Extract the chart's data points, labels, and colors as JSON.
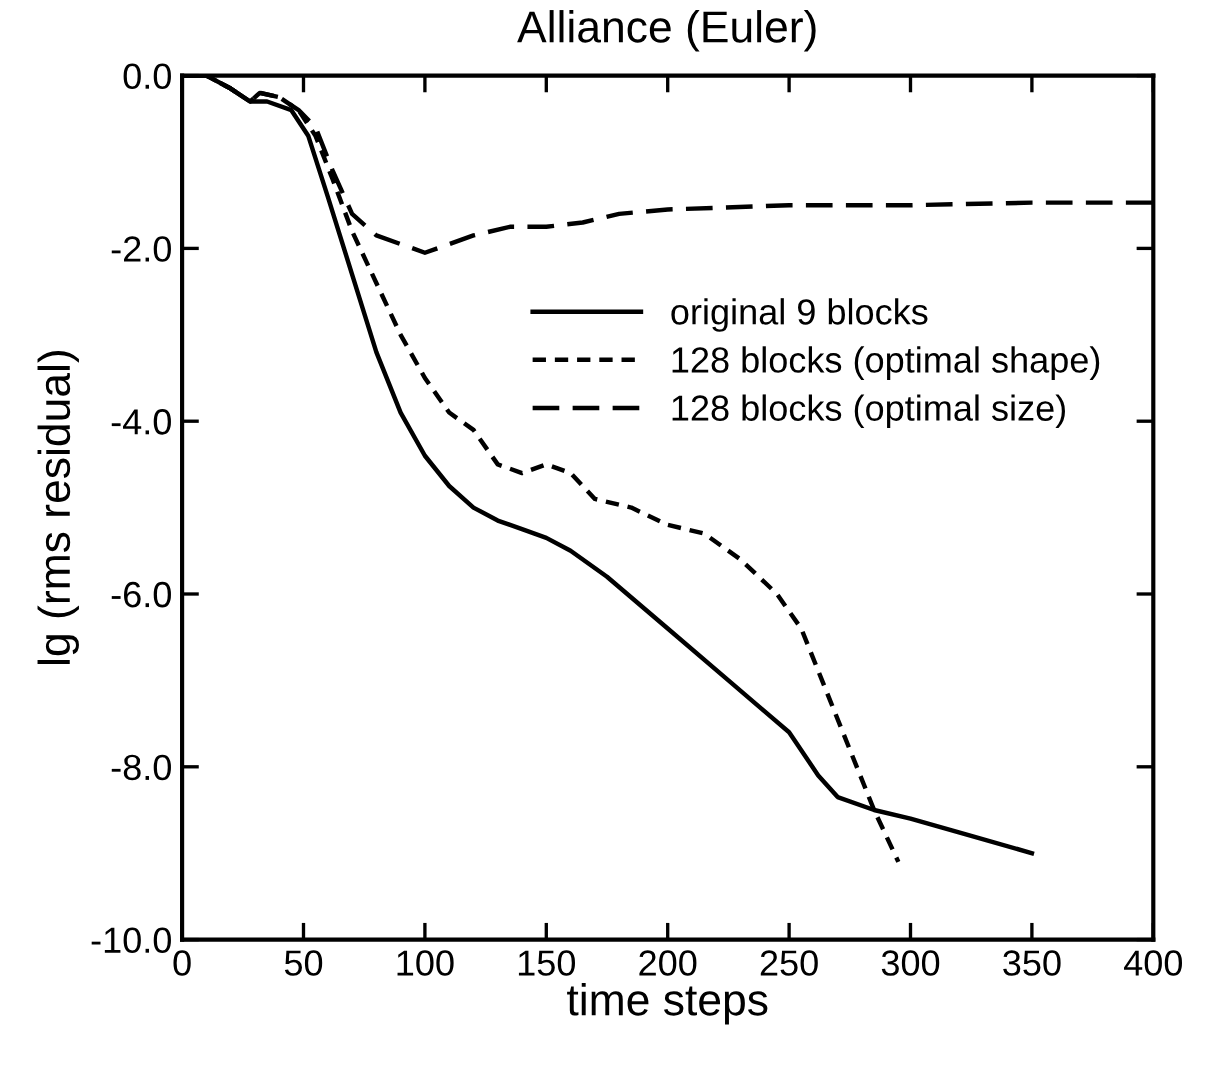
{
  "chart_data": {
    "type": "line",
    "title": "Alliance (Euler)",
    "xlabel": "time steps",
    "ylabel": "lg (rms residual)",
    "xlim": [
      0,
      400
    ],
    "xticks": [
      0,
      50,
      100,
      150,
      200,
      250,
      300,
      350,
      400
    ],
    "ylim": [
      -10,
      0
    ],
    "yticks": [
      {
        "value": -10,
        "label": "-10.0"
      },
      {
        "value": -8,
        "label": "-8.0"
      },
      {
        "value": -6,
        "label": "-6.0"
      },
      {
        "value": -4,
        "label": "-4.0"
      },
      {
        "value": -2,
        "label": "-2.0"
      },
      {
        "value": 0,
        "label": "0.0"
      }
    ],
    "grid": false,
    "legend": "right",
    "marker": "none",
    "series": [
      {
        "name": "original 9 blocks",
        "color": "#000000",
        "line_style": "solid",
        "x": [
          0,
          10,
          20,
          28,
          35,
          45,
          52,
          60,
          70,
          80,
          90,
          100,
          110,
          120,
          130,
          140,
          150,
          160,
          175,
          200,
          225,
          250,
          262,
          270,
          285,
          300,
          325,
          350
        ],
        "values": [
          0,
          0,
          -0.15,
          -0.3,
          -0.3,
          -0.4,
          -0.7,
          -1.4,
          -2.3,
          -3.2,
          -3.9,
          -4.4,
          -4.75,
          -5.0,
          -5.15,
          -5.25,
          -5.35,
          -5.5,
          -5.8,
          -6.4,
          -7.0,
          -7.6,
          -8.1,
          -8.35,
          -8.5,
          -8.6,
          -8.8,
          -9.0
        ]
      },
      {
        "name": "128 blocks (optimal shape)",
        "color": "#000000",
        "line_style": "dashed",
        "x": [
          0,
          10,
          20,
          28,
          32,
          40,
          48,
          55,
          62,
          70,
          80,
          90,
          100,
          110,
          120,
          130,
          140,
          150,
          160,
          170,
          185,
          200,
          215,
          230,
          245,
          255,
          265,
          275,
          285,
          295
        ],
        "values": [
          0,
          0,
          -0.15,
          -0.3,
          -0.2,
          -0.25,
          -0.4,
          -0.7,
          -1.2,
          -1.8,
          -2.4,
          -3.0,
          -3.5,
          -3.9,
          -4.1,
          -4.5,
          -4.6,
          -4.5,
          -4.6,
          -4.9,
          -5.0,
          -5.2,
          -5.3,
          -5.6,
          -6.0,
          -6.4,
          -7.1,
          -7.8,
          -8.5,
          -9.1
        ]
      },
      {
        "name": "128 blocks (optimal size)",
        "color": "#000000",
        "line_style": "longdash",
        "x": [
          0,
          10,
          20,
          28,
          32,
          40,
          48,
          55,
          62,
          70,
          80,
          90,
          100,
          110,
          120,
          135,
          150,
          165,
          180,
          200,
          250,
          300,
          350,
          400
        ],
        "values": [
          0,
          0,
          -0.15,
          -0.3,
          -0.2,
          -0.25,
          -0.4,
          -0.6,
          -1.1,
          -1.6,
          -1.85,
          -1.95,
          -2.05,
          -1.95,
          -1.85,
          -1.75,
          -1.75,
          -1.7,
          -1.6,
          -1.55,
          -1.5,
          -1.5,
          -1.47,
          -1.47
        ]
      }
    ]
  }
}
